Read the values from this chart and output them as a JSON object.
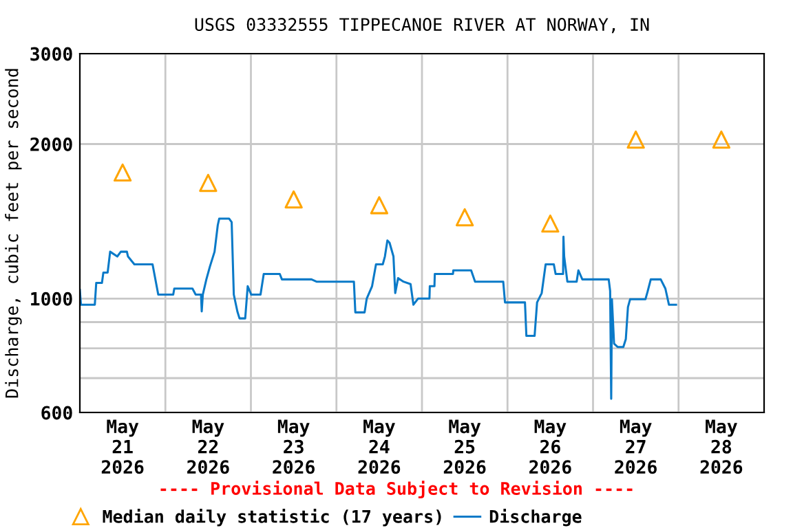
{
  "chart_data": {
    "type": "line",
    "title": "USGS 03332555 TIPPECANOE RIVER AT NORWAY, IN",
    "ylabel": "Discharge, cubic feet per second",
    "annotations": [
      "---- Provisional Data Subject to Revision ----"
    ],
    "log": "y",
    "grid": true,
    "legend": "bottom",
    "xlim": [
      "2026-05-21T00:00",
      "2026-05-29T00:00"
    ],
    "xticks": [
      {
        "value": "2026-05-21T12:00",
        "label": "May\n21\n2026"
      },
      {
        "value": "2026-05-22T12:00",
        "label": "May\n22\n2026"
      },
      {
        "value": "2026-05-23T12:00",
        "label": "May\n23\n2026"
      },
      {
        "value": "2026-05-24T12:00",
        "label": "May\n24\n2026"
      },
      {
        "value": "2026-05-25T12:00",
        "label": "May\n25\n2026"
      },
      {
        "value": "2026-05-26T12:00",
        "label": "May\n26\n2026"
      },
      {
        "value": "2026-05-27T12:00",
        "label": "May\n27\n2026"
      },
      {
        "value": "2026-05-28T12:00",
        "label": "May\n28\n2026"
      },
      {
        "value": "2026-05-22T00:00",
        "label": null
      },
      {
        "value": "2026-05-23T00:00",
        "label": null
      },
      {
        "value": "2026-05-24T00:00",
        "label": null
      },
      {
        "value": "2026-05-25T00:00",
        "label": null
      },
      {
        "value": "2026-05-26T00:00",
        "label": null
      },
      {
        "value": "2026-05-27T00:00",
        "label": null
      },
      {
        "value": "2026-05-28T00:00",
        "label": null
      }
    ],
    "ylim": [
      600,
      3000
    ],
    "yticks": [
      600,
      1000,
      2000,
      3000,
      {
        "value": 700,
        "label": null
      },
      {
        "value": 800,
        "label": null
      },
      {
        "value": 900,
        "label": null
      }
    ],
    "series": [
      {
        "name": "Median daily statistic (17 years)",
        "type": "scatter",
        "marker": "triangle",
        "color": "#ffa500",
        "x": [
          "2026-05-21T12:00",
          "2026-05-22T12:00",
          "2026-05-23T12:00",
          "2026-05-24T12:00",
          "2026-05-25T12:00",
          "2026-05-26T12:00",
          "2026-05-27T12:00",
          "2026-05-28T12:00"
        ],
        "values": [
          1760,
          1680,
          1560,
          1520,
          1440,
          1400,
          2040,
          2040
        ]
      },
      {
        "name": "Discharge",
        "marker": "none",
        "color": "#0a7ac8",
        "x": [
          "2026-05-21T00:00",
          "2026-05-21T00:18",
          "2026-05-21T04:12",
          "2026-05-21T04:36",
          "2026-05-21T06:12",
          "2026-05-21T06:36",
          "2026-05-21T07:48",
          "2026-05-21T08:30",
          "2026-05-21T10:30",
          "2026-05-21T11:30",
          "2026-05-21T13:12",
          "2026-05-21T13:30",
          "2026-05-21T15:18",
          "2026-05-21T20:24",
          "2026-05-21T22:00",
          "2026-05-22T02:12",
          "2026-05-22T02:30",
          "2026-05-22T07:36",
          "2026-05-22T08:30",
          "2026-05-22T10:00",
          "2026-05-22T10:12",
          "2026-05-22T10:30",
          "2026-05-22T11:30",
          "2026-05-22T12:30",
          "2026-05-22T13:48",
          "2026-05-22T14:42",
          "2026-05-22T15:06",
          "2026-05-22T17:54",
          "2026-05-22T18:36",
          "2026-05-22T19:12",
          "2026-05-22T20:12",
          "2026-05-22T20:48",
          "2026-05-22T22:24",
          "2026-05-22T23:06",
          "2026-05-23T00:06",
          "2026-05-23T02:42",
          "2026-05-23T03:36",
          "2026-05-23T08:06",
          "2026-05-23T08:42",
          "2026-05-23T17:00",
          "2026-05-23T18:24",
          "2026-05-24T04:54",
          "2026-05-24T05:18",
          "2026-05-24T07:54",
          "2026-05-24T08:30",
          "2026-05-24T10:00",
          "2026-05-24T11:06",
          "2026-05-24T13:00",
          "2026-05-24T13:36",
          "2026-05-24T14:18",
          "2026-05-24T14:54",
          "2026-05-24T16:00",
          "2026-05-24T16:30",
          "2026-05-24T17:18",
          "2026-05-24T18:48",
          "2026-05-24T20:48",
          "2026-05-24T21:36",
          "2026-05-24T22:54",
          "2026-05-25T02:06",
          "2026-05-25T02:12",
          "2026-05-25T03:30",
          "2026-05-25T03:36",
          "2026-05-25T08:42",
          "2026-05-25T08:48",
          "2026-05-25T13:48",
          "2026-05-25T14:54",
          "2026-05-25T22:48",
          "2026-05-25T23:18",
          "2026-05-26T04:54",
          "2026-05-26T05:18",
          "2026-05-26T07:36",
          "2026-05-26T08:18",
          "2026-05-26T09:36",
          "2026-05-26T10:42",
          "2026-05-26T13:00",
          "2026-05-26T13:30",
          "2026-05-26T15:36",
          "2026-05-26T15:42",
          "2026-05-26T15:54",
          "2026-05-26T16:48",
          "2026-05-26T19:24",
          "2026-05-26T19:54",
          "2026-05-26T21:00",
          "2026-05-27T04:24",
          "2026-05-27T04:48",
          "2026-05-27T05:06",
          "2026-05-27T05:18",
          "2026-05-27T05:54",
          "2026-05-27T06:54",
          "2026-05-27T08:30",
          "2026-05-27T09:12",
          "2026-05-27T09:48",
          "2026-05-27T10:24",
          "2026-05-27T14:42",
          "2026-05-27T15:18",
          "2026-05-27T16:12",
          "2026-05-27T19:00",
          "2026-05-27T20:18",
          "2026-05-27T21:18",
          "2026-05-27T23:18"
        ],
        "values": [
          1040,
          973,
          973,
          1073,
          1073,
          1124,
          1124,
          1234,
          1208,
          1234,
          1234,
          1208,
          1166,
          1166,
          1018,
          1018,
          1046,
          1046,
          1018,
          1018,
          944,
          1018,
          1090,
          1155,
          1234,
          1390,
          1431,
          1431,
          1409,
          1018,
          944,
          915,
          915,
          1057,
          1018,
          1018,
          1117,
          1117,
          1090,
          1090,
          1079,
          1079,
          940,
          940,
          1000,
          1057,
          1166,
          1166,
          1208,
          1298,
          1285,
          1208,
          1025,
          1096,
          1079,
          1067,
          973,
          1000,
          1000,
          1057,
          1057,
          1117,
          1117,
          1135,
          1135,
          1079,
          1079,
          983,
          983,
          846,
          846,
          983,
          1025,
          1166,
          1166,
          1117,
          1117,
          1320,
          1208,
          1079,
          1079,
          1135,
          1090,
          1090,
          1035,
          638,
          997,
          817,
          805,
          805,
          834,
          963,
          997,
          997,
          1031,
          1090,
          1090,
          1046,
          973,
          973
        ]
      }
    ]
  }
}
